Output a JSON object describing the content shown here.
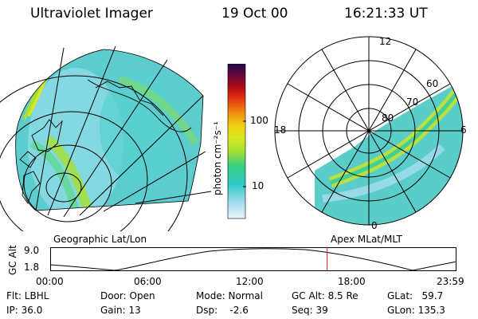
{
  "header": {
    "instrument": "Ultraviolet Imager",
    "date": "19 Oct 00",
    "time": "16:21:33 UT"
  },
  "left_panel": {
    "label": "Geographic Lat/Lon"
  },
  "right_panel": {
    "label": "Apex MLat/MLT",
    "lat_labels": [
      "80",
      "70",
      "60"
    ],
    "mlt_labels": [
      "12",
      "18",
      "6",
      "0"
    ]
  },
  "colorbar": {
    "unit_label": "photon cm⁻²s⁻¹",
    "ticks": [
      "100",
      "10"
    ],
    "scale": "log",
    "colors": [
      "#d8ecf4",
      "#30c8c8",
      "#38d080",
      "#a8e030",
      "#d8e820",
      "#f0d010",
      "#f09010",
      "#e03010",
      "#a80818",
      "#600840",
      "#200850"
    ]
  },
  "altitude_plot": {
    "ylabel": "GC Alt",
    "yticks": [
      "9.0",
      "1.8"
    ],
    "xticks": [
      "00:00",
      "06:00",
      "12:00",
      "18:00",
      "23:59"
    ],
    "current_time_hours": 16.36,
    "marker_color": "#d02020"
  },
  "status": {
    "flt": "Flt: LBHL",
    "ip": "IP: 36.0",
    "door": "Door: Open",
    "gain": "Gain: 13",
    "mode": "Mode: Normal",
    "dsp": "Dsp:    -2.6",
    "gc_alt": "GC Alt: 8.5 Re",
    "seq": "Seq: 39",
    "glat": "GLat:   59.7",
    "glon": "GLon: 135.3"
  }
}
